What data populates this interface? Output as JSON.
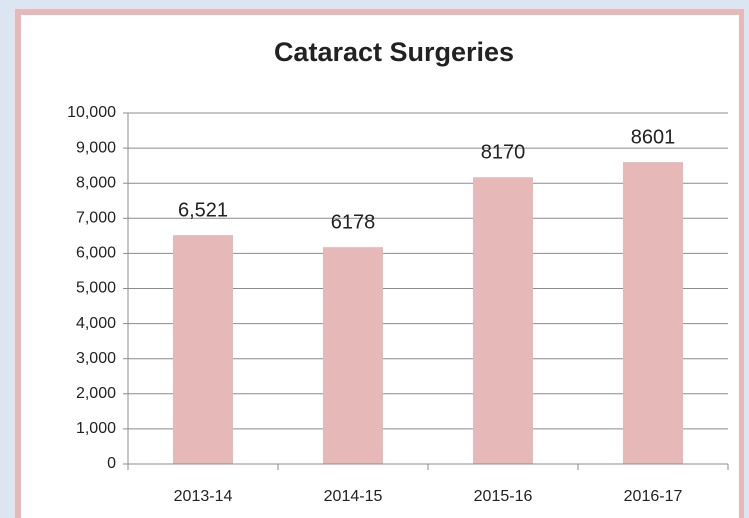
{
  "chart_data": {
    "type": "bar",
    "title": "Cataract Surgeries",
    "categories": [
      "2013-14",
      "2014-15",
      "2015-16",
      "2016-17"
    ],
    "values": [
      6521,
      6178,
      8170,
      8601
    ],
    "value_labels": [
      "6,521",
      "6178",
      "8170",
      "8601"
    ],
    "color": "#e6b9b8",
    "ylim": [
      0,
      10000
    ],
    "yticks": [
      0,
      {
        "value": 1000,
        "label": "1,000"
      },
      {
        "value": 2000,
        "label": "2,000"
      },
      {
        "value": 3000,
        "label": "3,000"
      },
      {
        "value": 4000,
        "label": "4,000"
      },
      {
        "value": 5000,
        "label": "5,000"
      },
      {
        "value": 6000,
        "label": "6,000"
      },
      {
        "value": 7000,
        "label": "7,000"
      },
      {
        "value": 8000,
        "label": "8,000"
      },
      {
        "value": 9000,
        "label": "9,000"
      },
      {
        "value": 10000,
        "label": "10,000"
      }
    ],
    "grid": true
  }
}
